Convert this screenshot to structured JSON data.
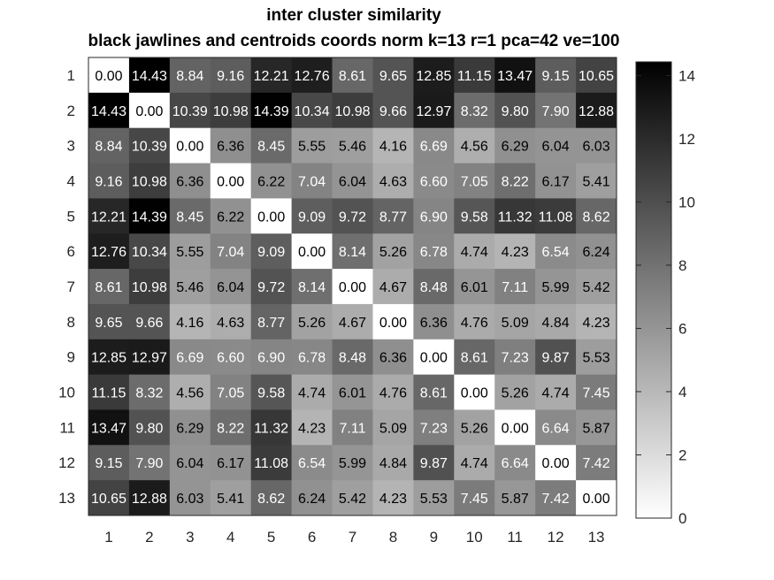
{
  "chart_data": {
    "type": "heatmap",
    "title": "inter cluster similarity",
    "subtitle": "black jawlines and centroids coords norm k=13 r=1 pca=42 ve=100",
    "x_labels": [
      "1",
      "2",
      "3",
      "4",
      "5",
      "6",
      "7",
      "8",
      "9",
      "10",
      "11",
      "12",
      "13"
    ],
    "y_labels": [
      "1",
      "2",
      "3",
      "4",
      "5",
      "6",
      "7",
      "8",
      "9",
      "10",
      "11",
      "12",
      "13"
    ],
    "values": [
      [
        0.0,
        14.43,
        8.84,
        9.16,
        12.21,
        12.76,
        8.61,
        9.65,
        12.85,
        11.15,
        13.47,
        9.15,
        10.65
      ],
      [
        14.43,
        0.0,
        10.39,
        10.98,
        14.39,
        10.34,
        10.98,
        9.66,
        12.97,
        8.32,
        9.8,
        7.9,
        12.88
      ],
      [
        8.84,
        10.39,
        0.0,
        6.36,
        8.45,
        5.55,
        5.46,
        4.16,
        6.69,
        4.56,
        6.29,
        6.04,
        6.03
      ],
      [
        9.16,
        10.98,
        6.36,
        0.0,
        6.22,
        7.04,
        6.04,
        4.63,
        6.6,
        7.05,
        8.22,
        6.17,
        5.41
      ],
      [
        12.21,
        14.39,
        8.45,
        6.22,
        0.0,
        9.09,
        9.72,
        8.77,
        6.9,
        9.58,
        11.32,
        11.08,
        8.62
      ],
      [
        12.76,
        10.34,
        5.55,
        7.04,
        9.09,
        0.0,
        8.14,
        5.26,
        6.78,
        4.74,
        4.23,
        6.54,
        6.24
      ],
      [
        8.61,
        10.98,
        5.46,
        6.04,
        9.72,
        8.14,
        0.0,
        4.67,
        8.48,
        6.01,
        7.11,
        5.99,
        5.42
      ],
      [
        9.65,
        9.66,
        4.16,
        4.63,
        8.77,
        5.26,
        4.67,
        0.0,
        6.36,
        4.76,
        5.09,
        4.84,
        4.23
      ],
      [
        12.85,
        12.97,
        6.69,
        6.6,
        6.9,
        6.78,
        8.48,
        6.36,
        0.0,
        8.61,
        7.23,
        9.87,
        5.53
      ],
      [
        11.15,
        8.32,
        4.56,
        7.05,
        9.58,
        4.74,
        6.01,
        4.76,
        8.61,
        0.0,
        5.26,
        4.74,
        7.45
      ],
      [
        13.47,
        9.8,
        6.29,
        8.22,
        11.32,
        4.23,
        7.11,
        5.09,
        7.23,
        5.26,
        0.0,
        6.64,
        5.87
      ],
      [
        9.15,
        7.9,
        6.04,
        6.17,
        11.08,
        6.54,
        5.99,
        4.84,
        9.87,
        4.74,
        6.64,
        0.0,
        7.42
      ],
      [
        10.65,
        12.88,
        6.03,
        5.41,
        8.62,
        6.24,
        5.42,
        4.23,
        5.53,
        7.45,
        5.87,
        7.42,
        0.0
      ]
    ],
    "colormap": "gray reversed (0 = white, max = black)",
    "clim": [
      0,
      14.43
    ],
    "colorbar_ticks": [
      0,
      2,
      4,
      6,
      8,
      10,
      12,
      14
    ],
    "colors": {
      "low": "#ffffff",
      "high": "#000000",
      "axis": "#262626"
    }
  }
}
